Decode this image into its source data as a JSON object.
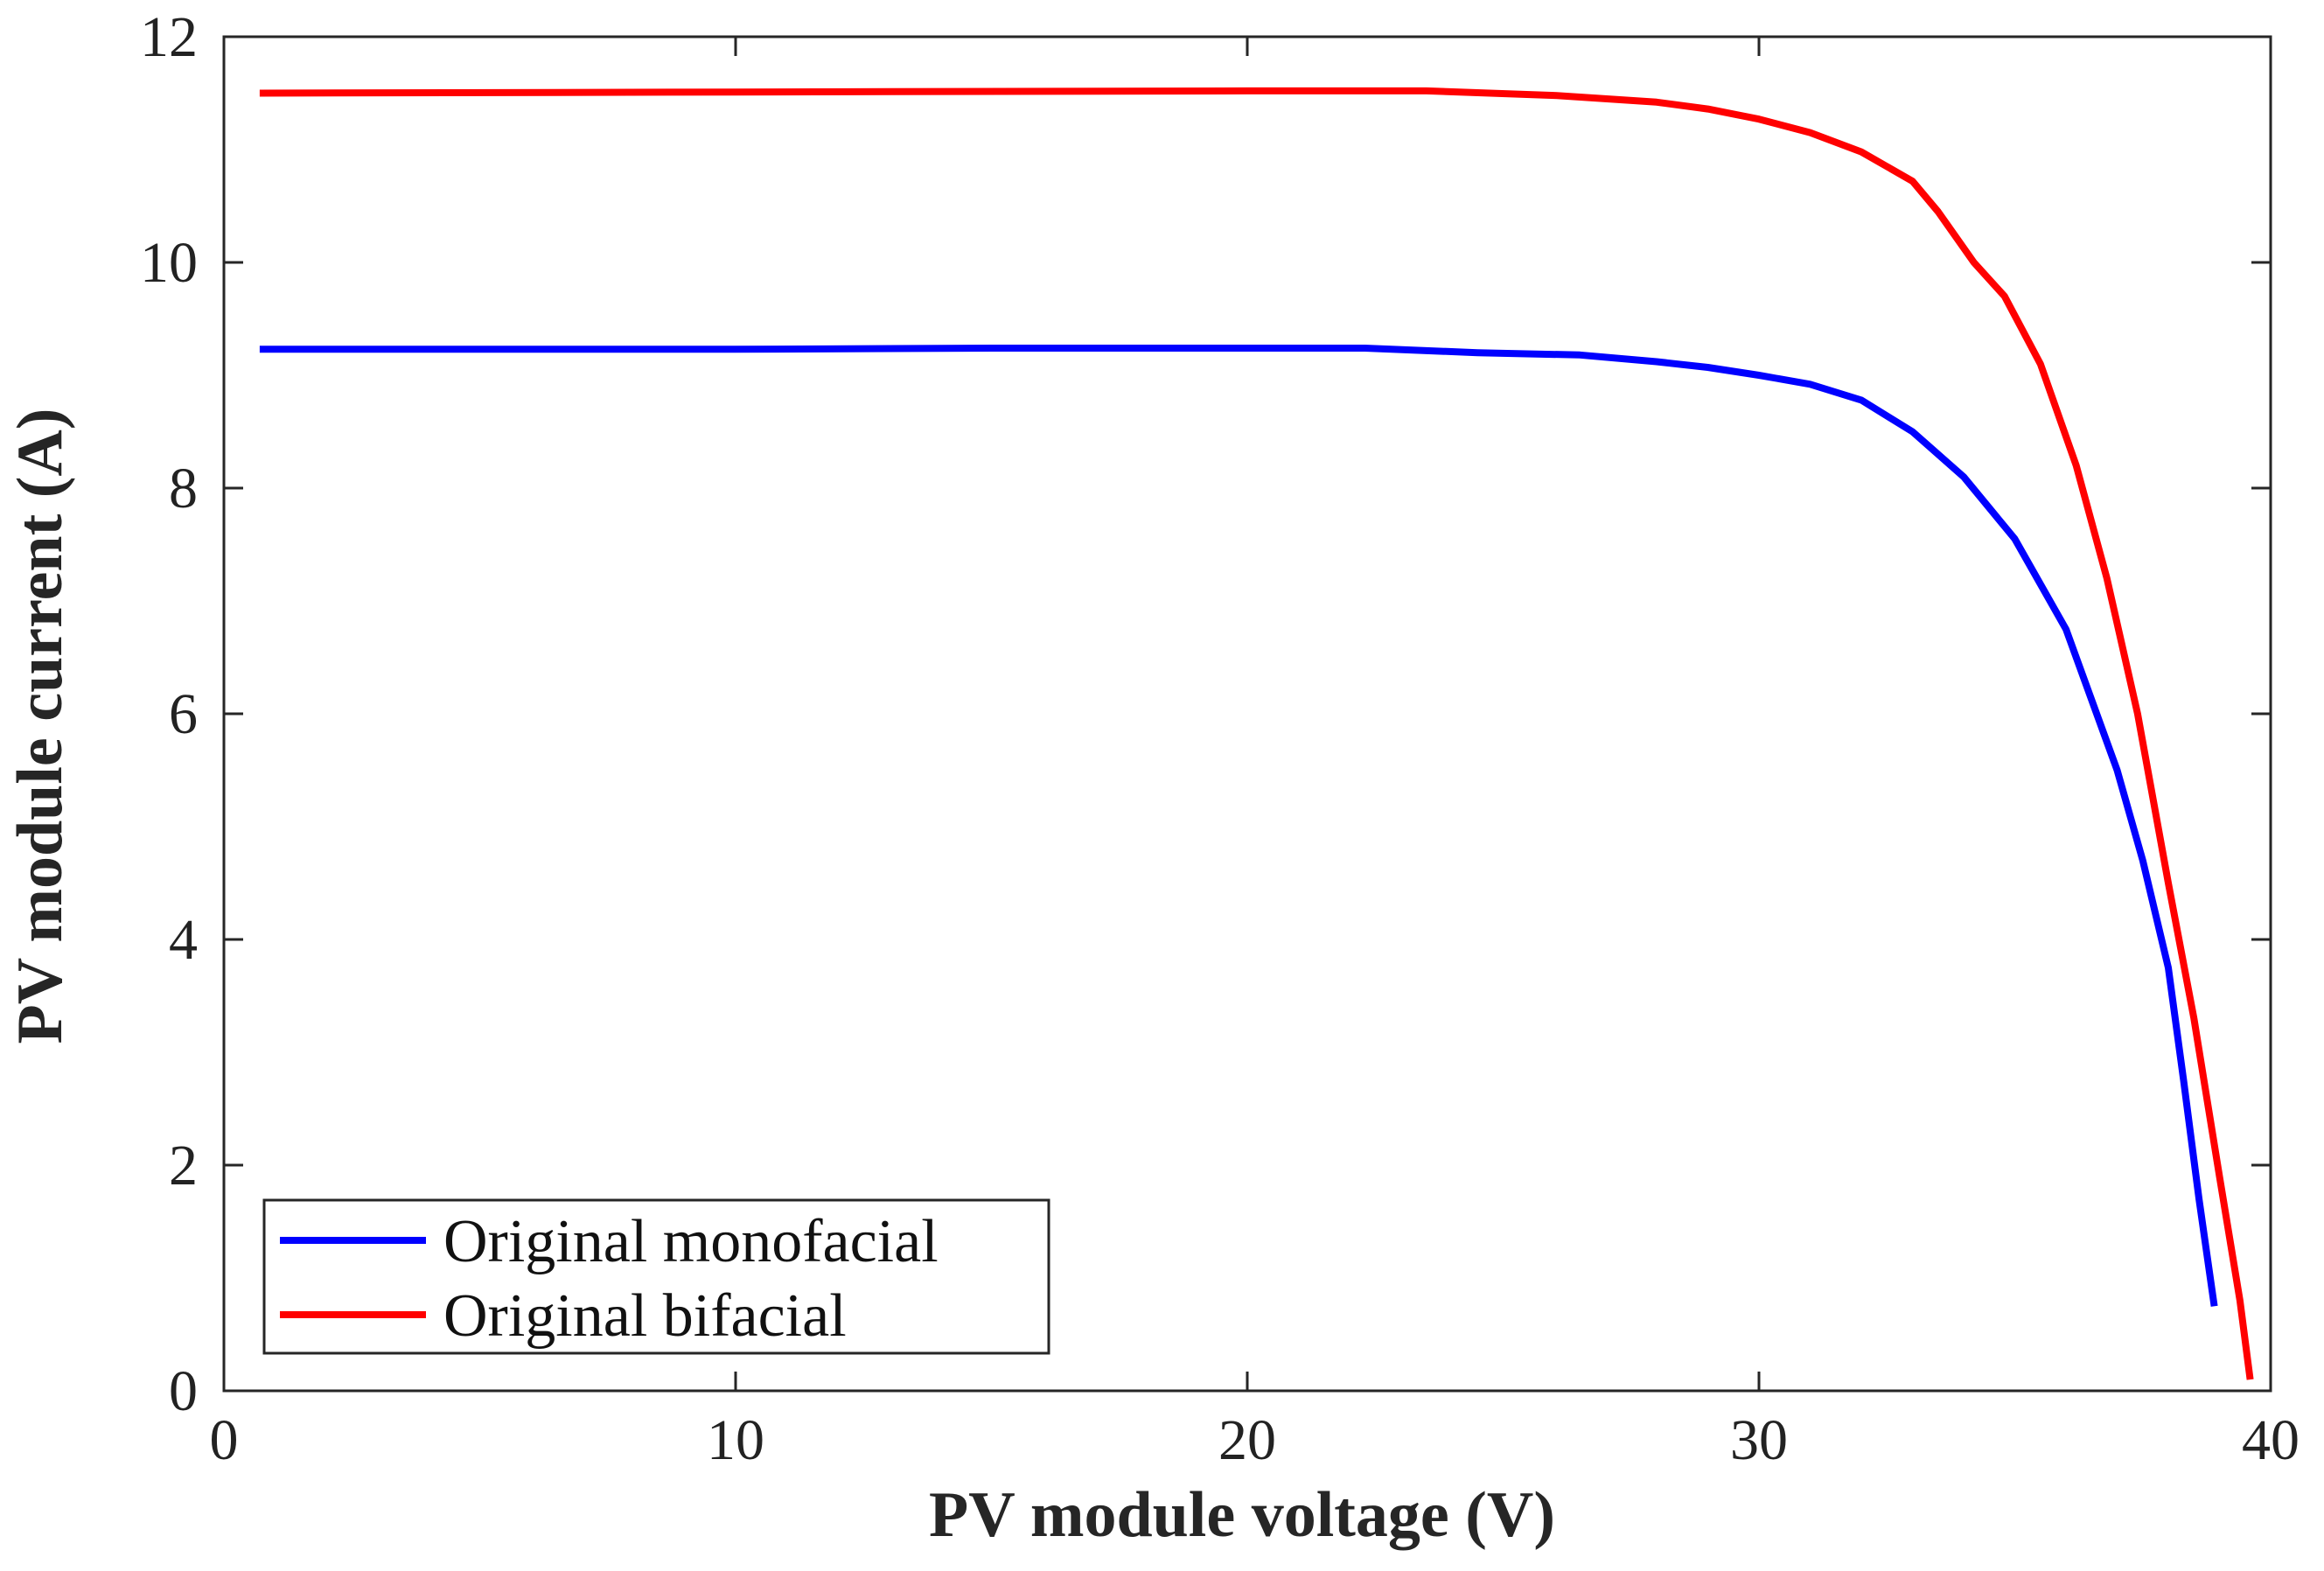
{
  "chart_data": {
    "type": "line",
    "title": "",
    "xlabel": "PV module voltage (V)",
    "ylabel": "PV module current (A)",
    "xlim": [
      0,
      40
    ],
    "ylim": [
      0,
      12
    ],
    "xticks": [
      0,
      10,
      20,
      30,
      40
    ],
    "yticks": [
      0,
      2,
      4,
      6,
      8,
      10,
      12
    ],
    "grid": false,
    "legend_position": "bottom-left",
    "series": [
      {
        "name": "Original monofacial",
        "color": "#0000ff",
        "x": [
          0.7,
          5,
          10,
          15,
          20,
          22.3,
          24.5,
          26.5,
          28,
          29,
          30,
          31,
          32,
          33,
          34,
          35,
          36,
          37,
          37.5,
          38,
          38.3,
          38.6,
          38.9
        ],
        "y": [
          9.23,
          9.23,
          9.23,
          9.24,
          9.24,
          9.24,
          9.2,
          9.18,
          9.12,
          9.07,
          9.0,
          8.92,
          8.78,
          8.5,
          8.1,
          7.55,
          6.75,
          5.5,
          4.7,
          3.75,
          2.75,
          1.7,
          0.75
        ]
      },
      {
        "name": "Original bifacial",
        "color": "#ff0000",
        "x": [
          0.7,
          10,
          20,
          23.5,
          26,
          28,
          29,
          30,
          31,
          32,
          33,
          33.5,
          34.2,
          34.8,
          35.5,
          36.2,
          36.8,
          37.4,
          38,
          38.5,
          39,
          39.4,
          39.6
        ],
        "y": [
          11.5,
          11.51,
          11.52,
          11.52,
          11.48,
          11.42,
          11.36,
          11.27,
          11.15,
          10.98,
          10.72,
          10.45,
          10.0,
          9.7,
          9.1,
          8.2,
          7.2,
          6.0,
          4.5,
          3.3,
          1.9,
          0.8,
          0.1
        ]
      }
    ]
  }
}
